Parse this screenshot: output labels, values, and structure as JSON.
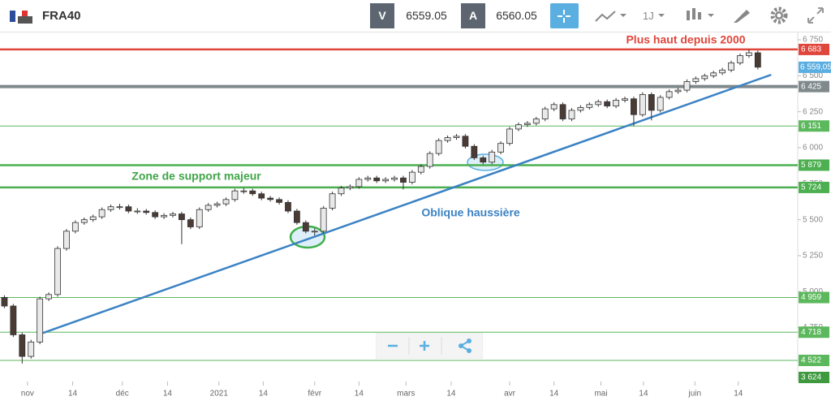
{
  "header": {
    "symbol": "FRA40",
    "sell_label": "V",
    "sell_price": "6559.05",
    "buy_label": "A",
    "buy_price": "6560.05",
    "timeframe": "1J"
  },
  "chart_data": {
    "type": "candlestick",
    "candles": [
      [
        4960,
        4975,
        4885,
        4900
      ],
      [
        4900,
        4915,
        4685,
        4700
      ],
      [
        4700,
        4715,
        4500,
        4550
      ],
      [
        4550,
        4665,
        4535,
        4650
      ],
      [
        4650,
        4965,
        4635,
        4950
      ],
      [
        4950,
        4995,
        4935,
        4980
      ],
      [
        4980,
        5315,
        4965,
        5300
      ],
      [
        5300,
        5435,
        5285,
        5420
      ],
      [
        5420,
        5495,
        5405,
        5480
      ],
      [
        5480,
        5515,
        5465,
        5500
      ],
      [
        5500,
        5535,
        5485,
        5520
      ],
      [
        5520,
        5585,
        5505,
        5570
      ],
      [
        5570,
        5605,
        5555,
        5590
      ],
      [
        5590,
        5610,
        5570,
        5590
      ],
      [
        5590,
        5605,
        5545,
        5560
      ],
      [
        5560,
        5580,
        5540,
        5560
      ],
      [
        5560,
        5575,
        5535,
        5550
      ],
      [
        5550,
        5565,
        5505,
        5520
      ],
      [
        5520,
        5545,
        5505,
        5530
      ],
      [
        5530,
        5555,
        5515,
        5540
      ],
      [
        5540,
        5555,
        5330,
        5500
      ],
      [
        5500,
        5515,
        5435,
        5450
      ],
      [
        5450,
        5585,
        5435,
        5570
      ],
      [
        5570,
        5615,
        5555,
        5600
      ],
      [
        5600,
        5625,
        5585,
        5610
      ],
      [
        5610,
        5655,
        5595,
        5640
      ],
      [
        5640,
        5715,
        5625,
        5700
      ],
      [
        5700,
        5720,
        5680,
        5700
      ],
      [
        5700,
        5715,
        5665,
        5680
      ],
      [
        5680,
        5695,
        5635,
        5650
      ],
      [
        5650,
        5665,
        5625,
        5640
      ],
      [
        5640,
        5655,
        5605,
        5620
      ],
      [
        5620,
        5635,
        5545,
        5560
      ],
      [
        5560,
        5575,
        5465,
        5480
      ],
      [
        5480,
        5495,
        5405,
        5420
      ],
      [
        5420,
        5440,
        5390,
        5420
      ],
      [
        5420,
        5595,
        5405,
        5580
      ],
      [
        5580,
        5695,
        5565,
        5680
      ],
      [
        5680,
        5735,
        5665,
        5720
      ],
      [
        5720,
        5745,
        5705,
        5730
      ],
      [
        5730,
        5795,
        5715,
        5780
      ],
      [
        5780,
        5805,
        5765,
        5790
      ],
      [
        5790,
        5805,
        5755,
        5770
      ],
      [
        5770,
        5795,
        5755,
        5780
      ],
      [
        5780,
        5805,
        5765,
        5790
      ],
      [
        5790,
        5805,
        5710,
        5760
      ],
      [
        5760,
        5845,
        5745,
        5830
      ],
      [
        5830,
        5885,
        5815,
        5870
      ],
      [
        5870,
        5975,
        5855,
        5960
      ],
      [
        5960,
        6065,
        5945,
        6050
      ],
      [
        6050,
        6085,
        6035,
        6070
      ],
      [
        6070,
        6095,
        6055,
        6080
      ],
      [
        6080,
        6095,
        5995,
        6010
      ],
      [
        6010,
        6025,
        5915,
        5930
      ],
      [
        5930,
        5945,
        5885,
        5900
      ],
      [
        5900,
        5985,
        5885,
        5970
      ],
      [
        5970,
        6045,
        5955,
        6030
      ],
      [
        6030,
        6145,
        6015,
        6130
      ],
      [
        6130,
        6175,
        6115,
        6160
      ],
      [
        6160,
        6185,
        6145,
        6170
      ],
      [
        6170,
        6215,
        6155,
        6200
      ],
      [
        6200,
        6285,
        6185,
        6270
      ],
      [
        6270,
        6315,
        6255,
        6300
      ],
      [
        6300,
        6315,
        6185,
        6200
      ],
      [
        6200,
        6275,
        6185,
        6260
      ],
      [
        6260,
        6295,
        6245,
        6280
      ],
      [
        6280,
        6315,
        6265,
        6300
      ],
      [
        6300,
        6335,
        6285,
        6320
      ],
      [
        6320,
        6335,
        6275,
        6290
      ],
      [
        6290,
        6345,
        6275,
        6330
      ],
      [
        6330,
        6355,
        6315,
        6340
      ],
      [
        6340,
        6355,
        6150,
        6230
      ],
      [
        6230,
        6385,
        6215,
        6370
      ],
      [
        6370,
        6385,
        6190,
        6260
      ],
      [
        6260,
        6365,
        6245,
        6350
      ],
      [
        6350,
        6405,
        6335,
        6390
      ],
      [
        6390,
        6415,
        6375,
        6400
      ],
      [
        6400,
        6475,
        6385,
        6460
      ],
      [
        6460,
        6495,
        6445,
        6480
      ],
      [
        6480,
        6515,
        6465,
        6500
      ],
      [
        6500,
        6535,
        6485,
        6520
      ],
      [
        6520,
        6555,
        6505,
        6540
      ],
      [
        6540,
        6605,
        6525,
        6590
      ],
      [
        6590,
        6655,
        6575,
        6640
      ],
      [
        6640,
        6683,
        6625,
        6660
      ],
      [
        6660,
        6675,
        6545,
        6560
      ]
    ],
    "up_color": "#e9e9e9",
    "down_color": "#4a3b35",
    "xlim": [
      -0.5,
      89.5
    ],
    "xticks": [
      {
        "value": 2.6,
        "label": "nov"
      },
      {
        "value": 7.7,
        "label": "14"
      },
      {
        "value": 13.3,
        "label": "déc"
      },
      {
        "value": 18.4,
        "label": "14"
      },
      {
        "value": 24.2,
        "label": "2021"
      },
      {
        "value": 29.2,
        "label": "14"
      },
      {
        "value": 35,
        "label": "févr"
      },
      {
        "value": 40,
        "label": "14"
      },
      {
        "value": 45.3,
        "label": "mars"
      },
      {
        "value": 50.4,
        "label": "14"
      },
      {
        "value": 57,
        "label": "avr"
      },
      {
        "value": 62,
        "label": "14"
      },
      {
        "value": 67.3,
        "label": "mai"
      },
      {
        "value": 72.1,
        "label": "14"
      },
      {
        "value": 77.9,
        "label": "juin"
      },
      {
        "value": 82.8,
        "label": "14"
      }
    ],
    "ylim": [
      4460,
      6801
    ],
    "yticks": [
      {
        "value": 6750,
        "label": "6 750"
      },
      {
        "value": 6500,
        "label": "6 500"
      },
      {
        "value": 6250,
        "label": "6 250"
      },
      {
        "value": 6000,
        "label": "6 000"
      },
      {
        "value": 5750,
        "label": "5 750"
      },
      {
        "value": 5500,
        "label": "5 500"
      },
      {
        "value": 5250,
        "label": "5 250"
      },
      {
        "value": 5000,
        "label": "5 000"
      },
      {
        "value": 4750,
        "label": "4 750"
      }
    ],
    "levels": [
      {
        "value": 6683,
        "label": "6 683",
        "color": "#e0463c",
        "width": 2.5,
        "line": true
      },
      {
        "value": 6425,
        "label": "6 425",
        "color": "#7f898c",
        "width": 4,
        "line": true
      },
      {
        "value": 6151,
        "label": "6 151",
        "color": "#5cb85c",
        "width": 1,
        "line": true
      },
      {
        "value": 5879,
        "label": "5 879",
        "color": "#4caf50",
        "width": 2.5,
        "line": true
      },
      {
        "value": 5724,
        "label": "5 724",
        "color": "#4caf50",
        "width": 2.5,
        "line": true
      },
      {
        "value": 4959,
        "label": "4 959",
        "color": "#5cb85c",
        "width": 1,
        "line": true
      },
      {
        "value": 4718,
        "label": "4 718",
        "color": "#5cb85c",
        "width": 1,
        "line": true
      },
      {
        "value": 4522,
        "label": "4 522",
        "color": "#5cb85c",
        "width": 1,
        "line": true
      },
      {
        "value": 3624,
        "label": "3 624",
        "color": "#3f9a3f",
        "width": 1,
        "line": false
      }
    ],
    "current_price": {
      "value": 6559.05,
      "label": "6 559,05",
      "color": "#5aaee0"
    },
    "trendline": {
      "x": [
        3.9,
        86.5
      ],
      "y": [
        4703,
        6507
      ],
      "color": "#3b82c4"
    },
    "annotations": [
      {
        "text": "Plus haut depuis 2000",
        "color": "#e0463c"
      },
      {
        "text": "Zone de support majeur",
        "color": "#3fa548"
      },
      {
        "text": "Oblique haussière",
        "color": "#3b82c4"
      }
    ]
  }
}
